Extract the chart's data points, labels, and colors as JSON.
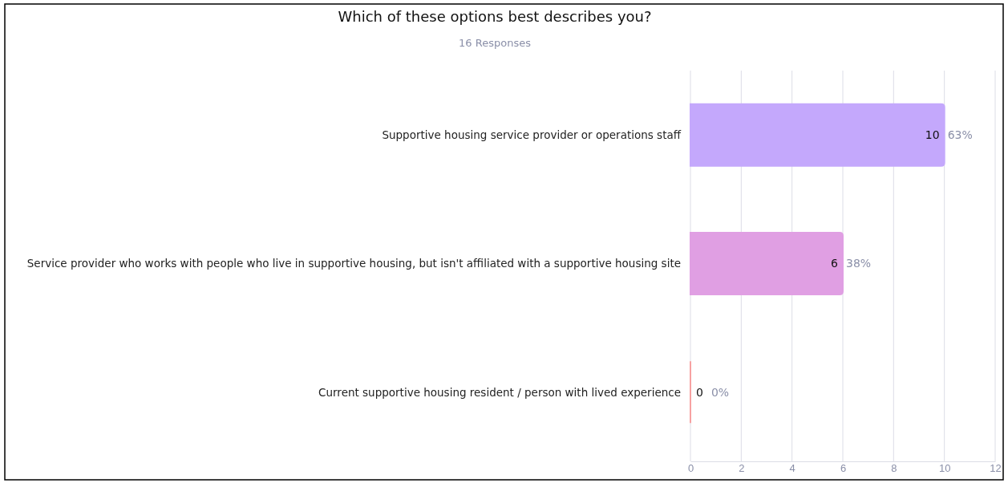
{
  "chart_data": {
    "type": "bar",
    "orientation": "horizontal",
    "title": "Which of these options best describes you?",
    "subtitle": "16 Responses",
    "categories": [
      "Supportive housing service provider or operations staff",
      "Service provider who works with people who live in supportive housing, but isn't affiliated with a supportive housing site",
      "Current supportive housing resident / person with lived experience"
    ],
    "values": [
      10,
      6,
      0
    ],
    "colors": [
      "#c4a8fc",
      "#e09fe3",
      "#f7a1a1"
    ],
    "value_labels": [
      "10 63%",
      "6 38%",
      "0 0%"
    ],
    "xlim": [
      0,
      12
    ],
    "xticks": [
      0,
      2,
      4,
      6,
      8,
      10,
      12
    ],
    "grid": "x"
  }
}
